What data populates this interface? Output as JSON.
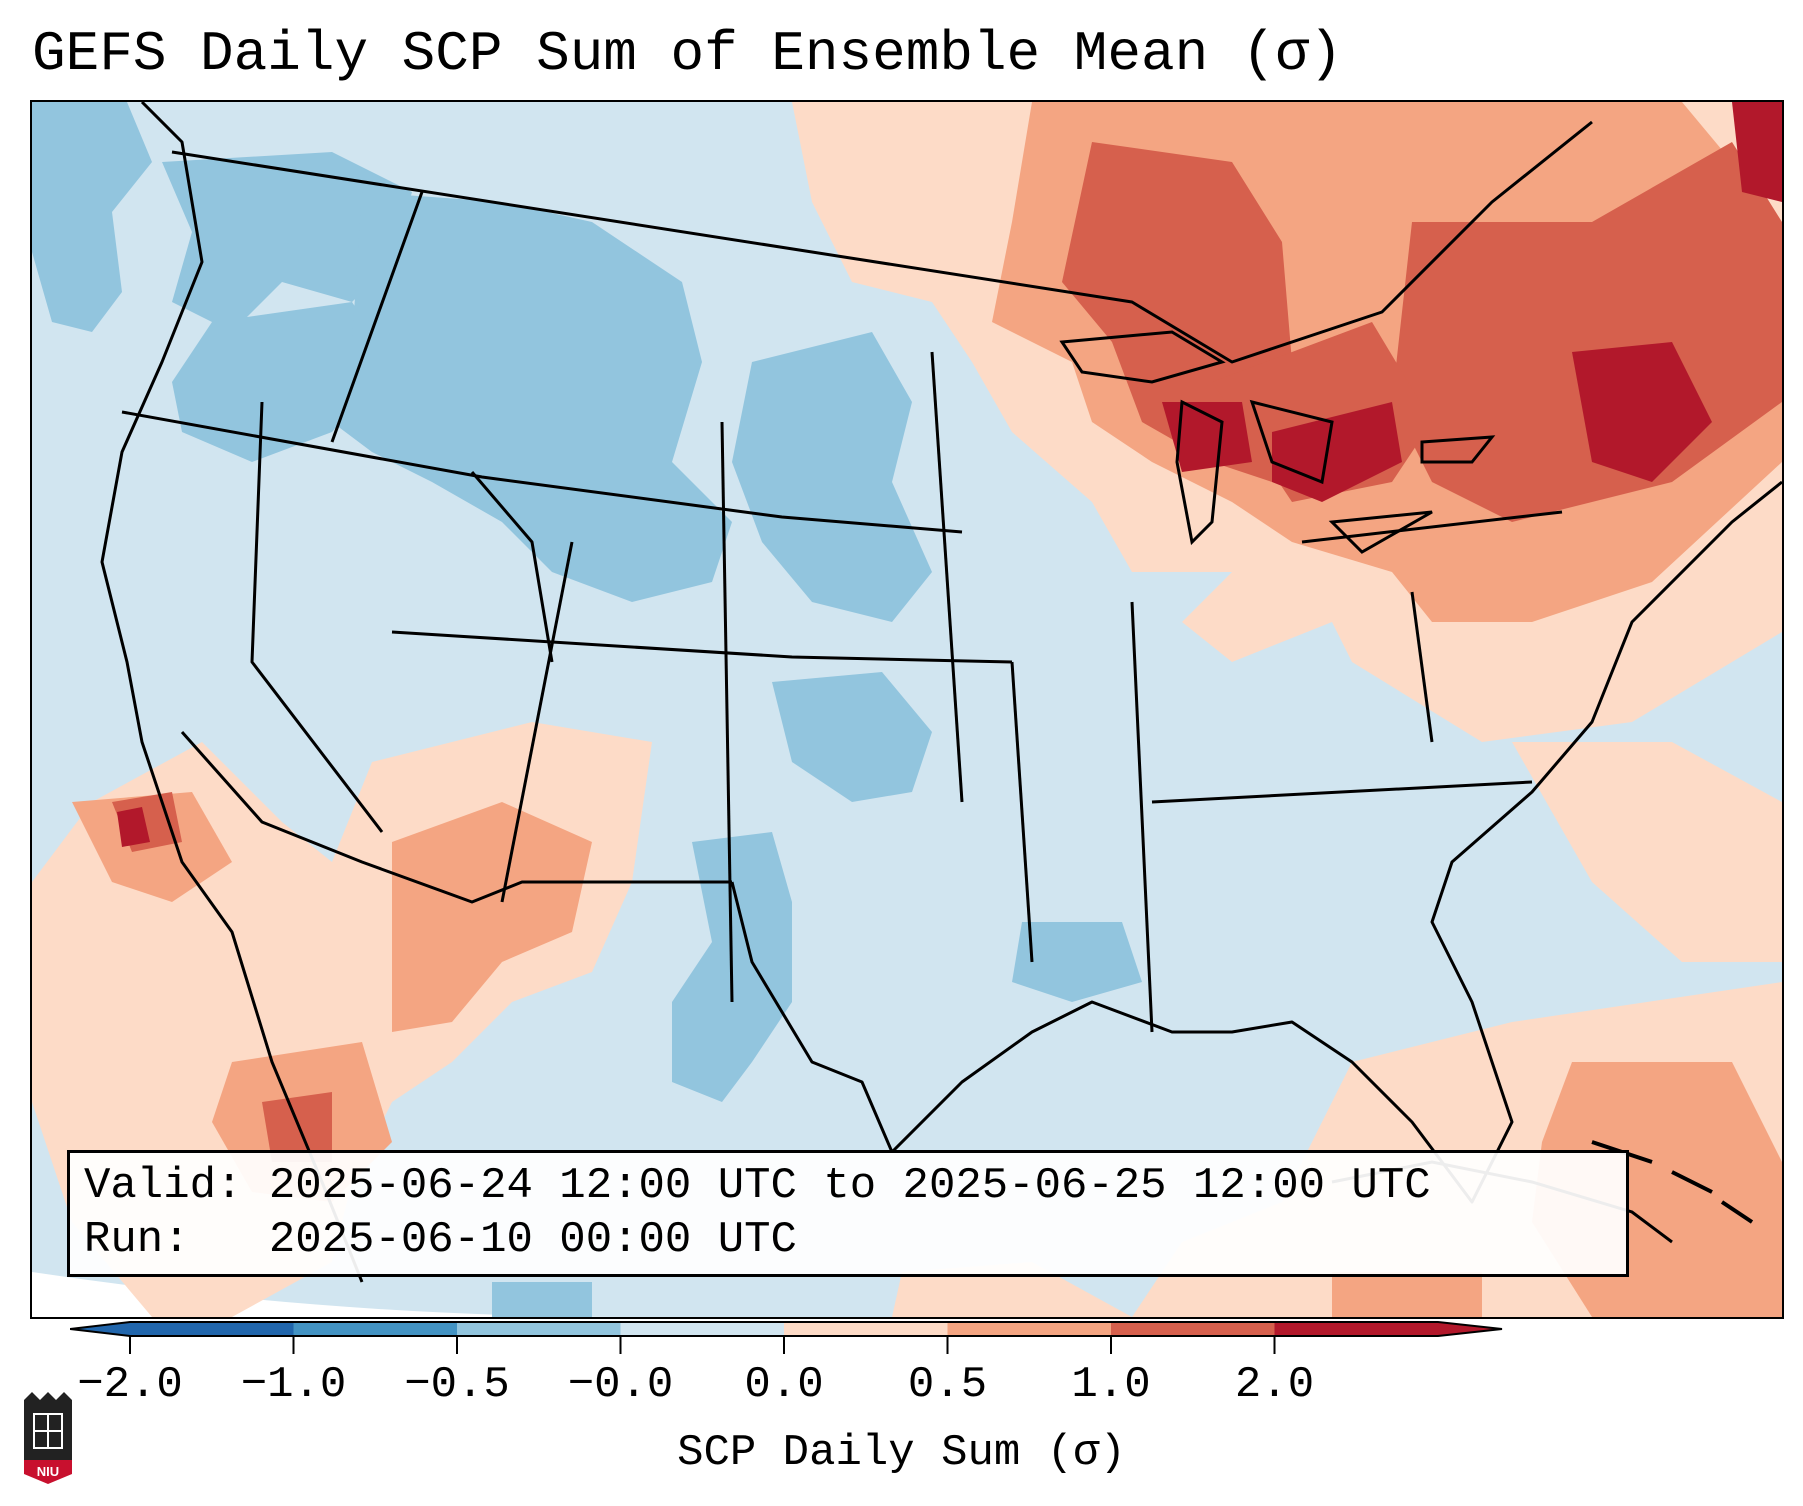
{
  "title": "GEFS Daily SCP Sum of Ensemble Mean (σ)",
  "map": {
    "region": "CONUS",
    "field": "SCP daily sum standardized anomaly",
    "anomaly_areas": [
      {
        "area": "Northern Rockies / Northern Plains",
        "sign": "negative",
        "level": -0.6
      },
      {
        "area": "Texas / Lower Mississippi",
        "sign": "negative",
        "level": -0.6
      },
      {
        "area": "Great Lakes / Ontario / Quebec",
        "sign": "positive",
        "level": 1.2
      },
      {
        "area": "Northeast / New England",
        "sign": "positive",
        "level": 1.5
      },
      {
        "area": "Desert Southwest / Mexico",
        "sign": "positive",
        "level": 0.6
      },
      {
        "area": "Caribbean",
        "sign": "positive",
        "level": 0.8
      }
    ]
  },
  "info": {
    "valid_label": "Valid:",
    "valid_value": "2025-06-24 12:00 UTC to 2025-06-25 12:00 UTC",
    "run_label": "Run:",
    "run_value": "2025-06-10 00:00 UTC"
  },
  "colorbar": {
    "label": "SCP Daily Sum (σ)",
    "ticks": [
      "−2.0",
      "−1.0",
      "−0.5",
      "−0.0",
      "0.0",
      "0.5",
      "1.0",
      "2.0"
    ],
    "colors": [
      "#2166ac",
      "#4393c3",
      "#92c5de",
      "#d1e5f0",
      "#fddbc7",
      "#f4a582",
      "#d6604d",
      "#b2182b"
    ],
    "extend": "both"
  },
  "logo": {
    "text": "NIU"
  }
}
